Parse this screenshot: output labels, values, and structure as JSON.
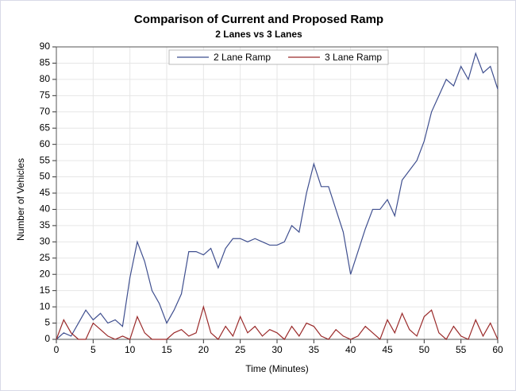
{
  "chart_data": {
    "type": "line",
    "title": "Comparison of Current and Proposed Ramp",
    "subtitle": "2 Lanes vs 3 Lanes",
    "x_label": "Time (Minutes)",
    "y_label": "Number of Vehicles",
    "x": [
      0,
      1,
      2,
      3,
      4,
      5,
      6,
      7,
      8,
      9,
      10,
      11,
      12,
      13,
      14,
      15,
      16,
      17,
      18,
      19,
      20,
      21,
      22,
      23,
      24,
      25,
      26,
      27,
      28,
      29,
      30,
      31,
      32,
      33,
      34,
      35,
      36,
      37,
      38,
      39,
      40,
      41,
      42,
      43,
      44,
      45,
      46,
      47,
      48,
      49,
      50,
      51,
      52,
      53,
      54,
      55,
      56,
      57,
      58,
      59,
      60
    ],
    "series": [
      {
        "name": "2 Lane Ramp",
        "color": "#3f4f8f",
        "values": [
          0,
          2,
          1,
          5,
          9,
          6,
          8,
          5,
          6,
          4,
          19,
          30,
          24,
          15,
          11,
          5,
          9,
          14,
          27,
          27,
          26,
          28,
          22,
          28,
          31,
          31,
          30,
          31,
          30,
          29,
          29,
          30,
          35,
          33,
          45,
          54,
          47,
          47,
          40,
          33,
          20,
          27,
          34,
          40,
          40,
          43,
          38,
          49,
          52,
          55,
          61,
          70,
          75,
          80,
          78,
          84,
          80,
          88,
          82,
          84,
          77
        ]
      },
      {
        "name": "3 Lane Ramp",
        "color": "#9a2a2a",
        "values": [
          0,
          6,
          2,
          0,
          0,
          5,
          3,
          1,
          0,
          1,
          0,
          7,
          2,
          0,
          0,
          0,
          2,
          3,
          1,
          2,
          10,
          2,
          0,
          4,
          1,
          7,
          2,
          4,
          1,
          3,
          2,
          0,
          4,
          1,
          5,
          4,
          1,
          0,
          3,
          1,
          0,
          1,
          4,
          2,
          0,
          6,
          2,
          8,
          3,
          1,
          7,
          9,
          2,
          0,
          4,
          1,
          0,
          6,
          1,
          5,
          0
        ]
      }
    ],
    "xlim": [
      0,
      60
    ],
    "xticks": [
      0,
      5,
      10,
      15,
      20,
      25,
      30,
      35,
      40,
      45,
      50,
      55,
      60
    ],
    "ylim": [
      0,
      90
    ],
    "yticks": [
      0,
      5,
      10,
      15,
      20,
      25,
      30,
      35,
      40,
      45,
      50,
      55,
      60,
      65,
      70,
      75,
      80,
      85,
      90
    ],
    "grid": true,
    "legend": "top"
  }
}
